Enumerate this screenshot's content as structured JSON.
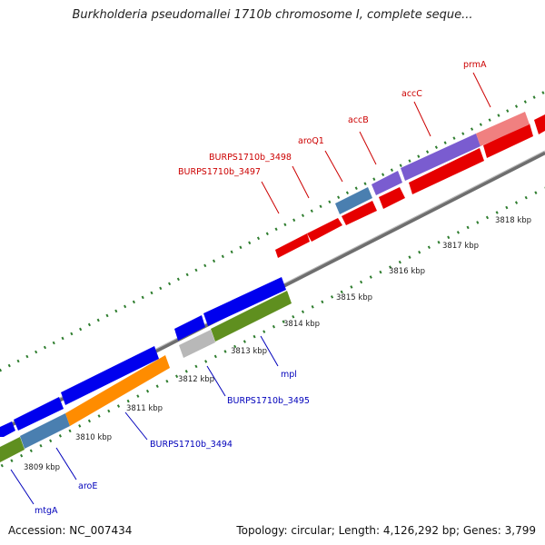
{
  "title": "Burkholderia pseudomallei 1710b chromosome I, complete seque...",
  "footer": {
    "accession": "Accession: NC_007434",
    "topology": "Topology: circular; Length: 4,126,292 bp; Genes: 3,799"
  },
  "colors": {
    "backbone": "#8a8a8a",
    "label_red": "#cc0000",
    "label_blue": "#0000bb",
    "tick_green": "#2e7d2e"
  },
  "kbp_labels": [
    "3809 kbp",
    "3810 kbp",
    "3811 kbp",
    "3812 kbp",
    "3813 kbp",
    "3814 kbp",
    "3815 kbp",
    "3816 kbp",
    "3817 kbp",
    "3818 kbp"
  ],
  "genes_forward": [
    {
      "label": "BURPS1710b_3497",
      "color": "#e60000"
    },
    {
      "label": "BURPS1710b_3498",
      "color": "#e60000"
    },
    {
      "label": "aroQ1",
      "color": "#4a7fb0"
    },
    {
      "label": "accB",
      "color": "#7a5cd0"
    },
    {
      "label": "accC",
      "color": "#7a5cd0"
    },
    {
      "label": "prmA",
      "color": "#f08080"
    }
  ],
  "genes_reverse": [
    {
      "label": "mtgA",
      "color": "#5f8f1f"
    },
    {
      "label": "aroE",
      "color": "#4a7fb0"
    },
    {
      "label": "BURPS1710b_3494",
      "color": "#ff8c00"
    },
    {
      "label": "BURPS1710b_3495",
      "color": "#b8b8b8"
    },
    {
      "label": "mpl",
      "color": "#5f8f1f"
    }
  ]
}
